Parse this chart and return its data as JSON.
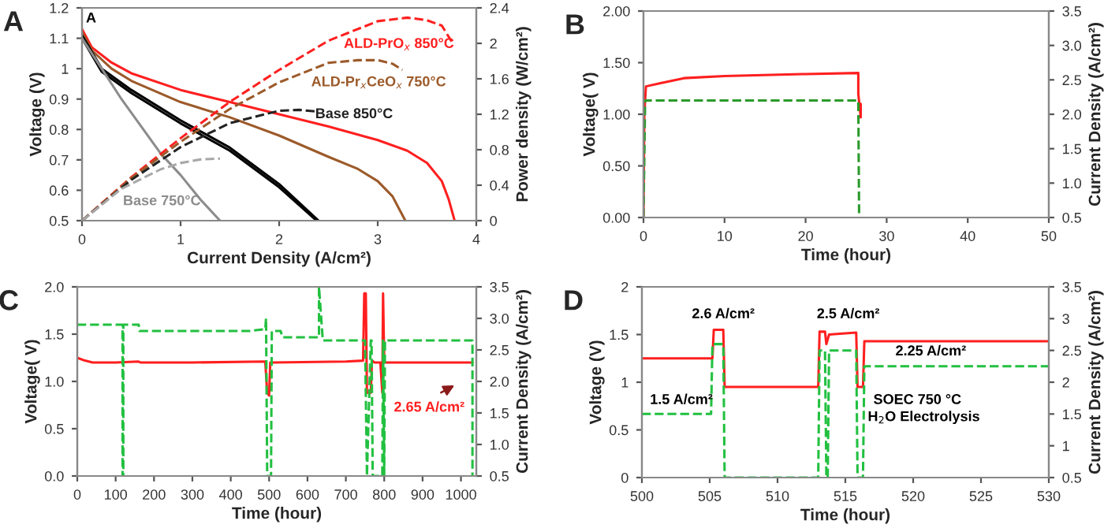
{
  "chart_data": [
    {
      "type": "line",
      "title": "A",
      "xlabel": "Current Density (A/cm²)",
      "ylabel": "Voltage (V)",
      "y2label": "Power density (W/cm²)",
      "xlim": [
        0,
        4
      ],
      "xticks": [
        0,
        1,
        2,
        3,
        4
      ],
      "ylim": [
        0.5,
        1.2
      ],
      "yticks": [
        0.5,
        0.6,
        0.7,
        0.8,
        0.9,
        1,
        1.1,
        1.2
      ],
      "y2lim": [
        0,
        2.4
      ],
      "y2ticks": [
        0,
        0.4,
        0.8,
        1.2,
        1.6,
        2,
        2.4
      ],
      "series": [
        {
          "color": "#ff1f1f",
          "line_style": "solid",
          "x": [
            0,
            0.1,
            0.3,
            0.5,
            1,
            1.5,
            2,
            2.5,
            3,
            3.3,
            3.5,
            3.65,
            3.72,
            3.78
          ],
          "values": [
            1.13,
            1.07,
            1.02,
            0.985,
            0.93,
            0.89,
            0.85,
            0.81,
            0.765,
            0.73,
            0.69,
            0.63,
            0.57,
            0.5
          ]
        },
        {
          "color": "#ff1f1f",
          "line_style": "dashed",
          "axis": "y2",
          "x": [
            0,
            0.5,
            1,
            1.5,
            2,
            2.5,
            3,
            3.3,
            3.5,
            3.65,
            3.75
          ],
          "values": [
            0,
            0.49,
            0.93,
            1.34,
            1.7,
            2.03,
            2.25,
            2.29,
            2.26,
            2.2,
            2.02
          ]
        },
        {
          "color": "#9c5a2a",
          "line_style": "solid",
          "x": [
            0,
            0.1,
            0.3,
            0.5,
            1,
            1.5,
            2,
            2.5,
            2.8,
            3,
            3.15,
            3.28
          ],
          "values": [
            1.12,
            1.06,
            1.0,
            0.96,
            0.89,
            0.84,
            0.78,
            0.71,
            0.67,
            0.63,
            0.58,
            0.5
          ]
        },
        {
          "color": "#9c5a2a",
          "line_style": "dashed",
          "axis": "y2",
          "x": [
            0,
            0.5,
            1,
            1.5,
            2,
            2.5,
            2.8,
            3,
            3.15,
            3.25
          ],
          "values": [
            0,
            0.48,
            0.89,
            1.26,
            1.56,
            1.78,
            1.81,
            1.81,
            1.77,
            1.7
          ]
        },
        {
          "color": "#000000",
          "line_style": "solid",
          "x": [
            0,
            0.2,
            0.5,
            1,
            1.5,
            2,
            2.4
          ],
          "values": [
            1.11,
            1.0,
            0.93,
            0.83,
            0.74,
            0.62,
            0.5
          ]
        },
        {
          "color": "#000000",
          "line_style": "solid",
          "x": [
            0,
            0.2,
            0.5,
            1,
            1.5,
            2,
            2.38
          ],
          "values": [
            1.1,
            0.99,
            0.92,
            0.82,
            0.73,
            0.61,
            0.5
          ]
        },
        {
          "color": "#222222",
          "line_style": "dashed",
          "axis": "y2",
          "x": [
            0,
            0.5,
            1,
            1.5,
            2,
            2.2,
            2.4
          ],
          "values": [
            0,
            0.46,
            0.83,
            1.1,
            1.24,
            1.25,
            1.23
          ]
        },
        {
          "color": "#8c8c8c",
          "line_style": "solid",
          "x": [
            0,
            0.2,
            0.4,
            0.6,
            0.8,
            1,
            1.2,
            1.4
          ],
          "values": [
            1.1,
            1.0,
            0.9,
            0.81,
            0.72,
            0.65,
            0.57,
            0.5
          ]
        },
        {
          "color": "#a8a8a8",
          "line_style": "dashed",
          "axis": "y2",
          "x": [
            0,
            0.4,
            0.8,
            1,
            1.2,
            1.4
          ],
          "values": [
            0,
            0.36,
            0.58,
            0.65,
            0.69,
            0.7
          ]
        }
      ],
      "annotations": [
        "A",
        "ALD-PrO$_{x}$ 850°C",
        "ALD-Pr$_{x}$CeO$_{x}$ 750°C",
        "Base 850°C",
        "Base 750°C"
      ]
    },
    {
      "type": "line",
      "title": "B",
      "xlabel": "Time (hour)",
      "ylabel": "Voltage( V)",
      "y2label": "Current Density (A/cm²)",
      "xlim": [
        0,
        50
      ],
      "xticks": [
        0,
        10,
        20,
        30,
        40,
        50
      ],
      "ylim": [
        0,
        2
      ],
      "yticks": [
        {
          "value": 0,
          "label": "0.00"
        },
        {
          "value": 0.5,
          "label": "0.50"
        },
        {
          "value": 1,
          "label": "1.00"
        },
        {
          "value": 1.5,
          "label": "1.50"
        },
        {
          "value": 2,
          "label": "2.00"
        }
      ],
      "y2lim": [
        0.5,
        3.5
      ],
      "y2ticks": [
        0.5,
        {
          "value": 1,
          "label": "1.0"
        },
        1.5,
        {
          "value": 2,
          "label": "2.0"
        },
        2.5,
        {
          "value": 3,
          "label": "3.0"
        },
        3.5
      ],
      "series": [
        {
          "color": "#ff1f1f",
          "line_style": "solid",
          "x": [
            0,
            0.1,
            0.3,
            2,
            5,
            10,
            20,
            26.5,
            26.5,
            26.8,
            26.8
          ],
          "values": [
            0,
            1.0,
            1.27,
            1.3,
            1.35,
            1.37,
            1.39,
            1.4,
            1.2,
            0.97,
            1.1
          ]
        },
        {
          "color": "#2a9a2a",
          "line_style": "dashed",
          "axis": "y2",
          "x": [
            0,
            0.2,
            26.5,
            26.6
          ],
          "values": [
            0.5,
            2.2,
            2.2,
            0.5
          ]
        }
      ]
    },
    {
      "type": "line",
      "title": "C",
      "xlabel": "Time (hour)",
      "ylabel": "Voltage( V)",
      "y2label": "Current Density (A/cm²)",
      "xlim": [
        0,
        1040
      ],
      "xticks": [
        0,
        100,
        200,
        300,
        400,
        500,
        600,
        700,
        800,
        900,
        1000
      ],
      "ylim": [
        0,
        2
      ],
      "yticks": [
        {
          "value": 0,
          "label": "0.0"
        },
        0.5,
        {
          "value": 1,
          "label": "1.0"
        },
        1.5,
        {
          "value": 2,
          "label": "2.0"
        }
      ],
      "y2lim": [
        0.5,
        3.5
      ],
      "y2ticks": [
        0.5,
        {
          "value": 1,
          "label": "1.0"
        },
        1.5,
        {
          "value": 2,
          "label": "2.0"
        },
        2.5,
        {
          "value": 3,
          "label": "3.0"
        },
        3.5
      ],
      "series": [
        {
          "color": "#ff1f1f",
          "line_style": "solid",
          "x": [
            0,
            20,
            40,
            100,
            160,
            165,
            300,
            490,
            495,
            500,
            503,
            510,
            700,
            745,
            748,
            752,
            755,
            765,
            768,
            775,
            790,
            795,
            797,
            800,
            1030
          ],
          "values": [
            1.25,
            1.22,
            1.2,
            1.2,
            1.21,
            1.2,
            1.2,
            1.21,
            0.88,
            0.85,
            1.2,
            1.2,
            1.21,
            1.22,
            1.93,
            1.93,
            0.88,
            0.88,
            1.22,
            1.2,
            1.2,
            0.88,
            1.93,
            1.2,
            1.2
          ]
        },
        {
          "color": "#22c040",
          "line_style": "dashed",
          "axis": "y2",
          "x": [
            0,
            118,
            118,
            120,
            120,
            160,
            162,
            450,
            490,
            492,
            495,
            505,
            507,
            530,
            535,
            630,
            630,
            640,
            750,
            755,
            765,
            767,
            770,
            795,
            797,
            800,
            802,
            1030,
            1030
          ],
          "values": [
            2.9,
            2.9,
            0.5,
            0.5,
            2.9,
            2.9,
            2.8,
            2.8,
            2.83,
            3.0,
            0.5,
            0.5,
            2.8,
            2.8,
            2.7,
            2.7,
            3.5,
            2.65,
            2.65,
            0.5,
            2.65,
            2.65,
            0.5,
            0.5,
            2.65,
            0.5,
            2.65,
            2.65,
            0.5
          ]
        }
      ],
      "annotations": [
        "2.65 A/cm²"
      ]
    },
    {
      "type": "line",
      "title": "D",
      "xlabel": "Time (hour)",
      "ylabel": "Voltage (V)",
      "y2label": "Current Density (A/cm²)",
      "xlim": [
        500,
        530
      ],
      "xticks": [
        500,
        505,
        510,
        515,
        520,
        525,
        530
      ],
      "ylim": [
        0,
        2
      ],
      "yticks": [
        0,
        0.5,
        1,
        1.5,
        2
      ],
      "y2lim": [
        0.5,
        3.5
      ],
      "y2ticks": [
        0.5,
        1,
        1.5,
        2,
        2.5,
        3,
        3.5
      ],
      "series": [
        {
          "color": "#ff1f1f",
          "line_style": "solid",
          "x": [
            500,
            505.2,
            505.3,
            506,
            506.1,
            513,
            513.1,
            513.5,
            513.6,
            513.8,
            515.8,
            515.9,
            516.3,
            516.4,
            530
          ],
          "values": [
            1.25,
            1.25,
            1.55,
            1.55,
            0.95,
            0.95,
            1.53,
            1.53,
            1.4,
            1.5,
            1.52,
            0.95,
            0.95,
            1.43,
            1.43
          ]
        },
        {
          "color": "#22c040",
          "line_style": "dashed",
          "axis": "y2",
          "x": [
            500,
            505.1,
            505.2,
            506,
            506.1,
            513,
            513.1,
            513.5,
            513.6,
            513.7,
            513.8,
            515.8,
            515.9,
            516.3,
            516.4,
            530
          ],
          "values": [
            1.5,
            1.5,
            2.6,
            2.6,
            0.5,
            0.5,
            2.5,
            2.5,
            0.5,
            0.5,
            2.5,
            2.5,
            0.5,
            0.5,
            2.25,
            2.25
          ]
        }
      ],
      "annotations": [
        "2.6 A/cm²",
        "2.5 A/cm²",
        "1.5 A/cm²",
        "2.25 A/cm²",
        "SOEC 750 °C",
        "H$_{2}$O Electrolysis"
      ]
    }
  ]
}
